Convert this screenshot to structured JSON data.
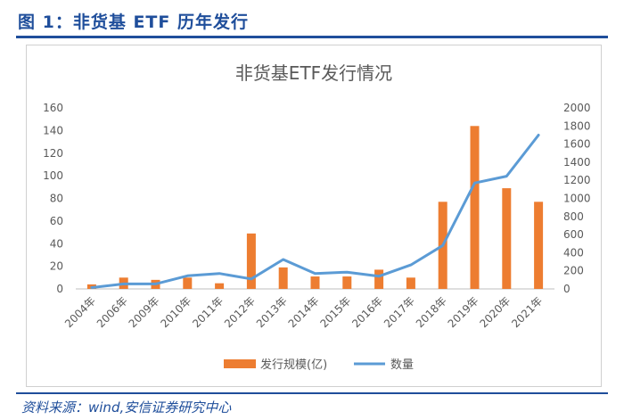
{
  "figure": {
    "title": "图 1：非货基 ETF 历年发行",
    "source": "资料来源：wind,安信证券研究中心"
  },
  "chart_data": {
    "type": "bar+line",
    "title": "非货基ETF发行情况",
    "categories": [
      "2004年",
      "2006年",
      "2009年",
      "2010年",
      "2011年",
      "2012年",
      "2013年",
      "2014年",
      "2015年",
      "2016年",
      "2017年",
      "2018年",
      "2019年",
      "2020年",
      "2021年"
    ],
    "series": [
      {
        "name": "发行规模(亿)",
        "type": "bar",
        "axis": "left",
        "color": "#ed7d31",
        "values": [
          4,
          10,
          8,
          10,
          5,
          49,
          19,
          11,
          11,
          17,
          10,
          77,
          144,
          89,
          77
        ]
      },
      {
        "name": "数量",
        "type": "line",
        "axis": "right",
        "color": "#5b9bd5",
        "values": [
          15,
          55,
          55,
          145,
          170,
          110,
          325,
          170,
          185,
          140,
          265,
          480,
          1170,
          1245,
          1700
        ]
      }
    ],
    "ylim_left": [
      0,
      160
    ],
    "yticks_left": [
      0,
      20,
      40,
      60,
      80,
      100,
      120,
      140,
      160
    ],
    "ylim_right": [
      0,
      2000
    ],
    "yticks_right": [
      0,
      200,
      400,
      600,
      800,
      1000,
      1200,
      1400,
      1600,
      1800,
      2000
    ],
    "grid": false,
    "legend_position": "bottom"
  }
}
